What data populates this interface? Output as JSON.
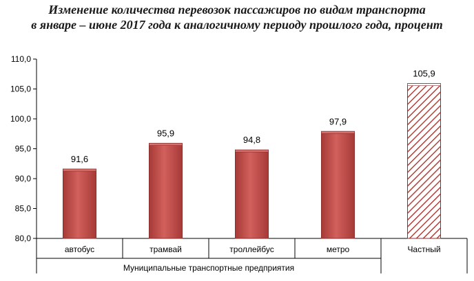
{
  "title_line1": "Изменение количества перевозок пассажиров по видам транспорта",
  "title_line2": "в январе – июне 2017 года к аналогичному периоду прошлого года, процент",
  "chart_data": {
    "type": "bar",
    "categories": [
      "автобус",
      "трамвай",
      "троллейбус",
      "метро",
      "Частный"
    ],
    "values": [
      91.6,
      95.9,
      94.8,
      97.9,
      105.9
    ],
    "value_labels": [
      "91,6",
      "95,9",
      "94,8",
      "97,9",
      "105,9"
    ],
    "group_label": "Муниципальные транспортные предприятия",
    "group_span": [
      "автобус",
      "трамвай",
      "троллейбус",
      "метро"
    ],
    "hatched_categories": [
      "Частный"
    ],
    "ylim": [
      80,
      110
    ],
    "yticks": [
      80,
      85,
      90,
      95,
      100,
      105,
      110
    ],
    "ytick_labels": [
      "80,0",
      "85,0",
      "90,0",
      "95,0",
      "100,0",
      "105,0",
      "110,0"
    ],
    "grid": false,
    "bar_color": "#c0504d",
    "bar_edge": "#8b2f2c"
  }
}
